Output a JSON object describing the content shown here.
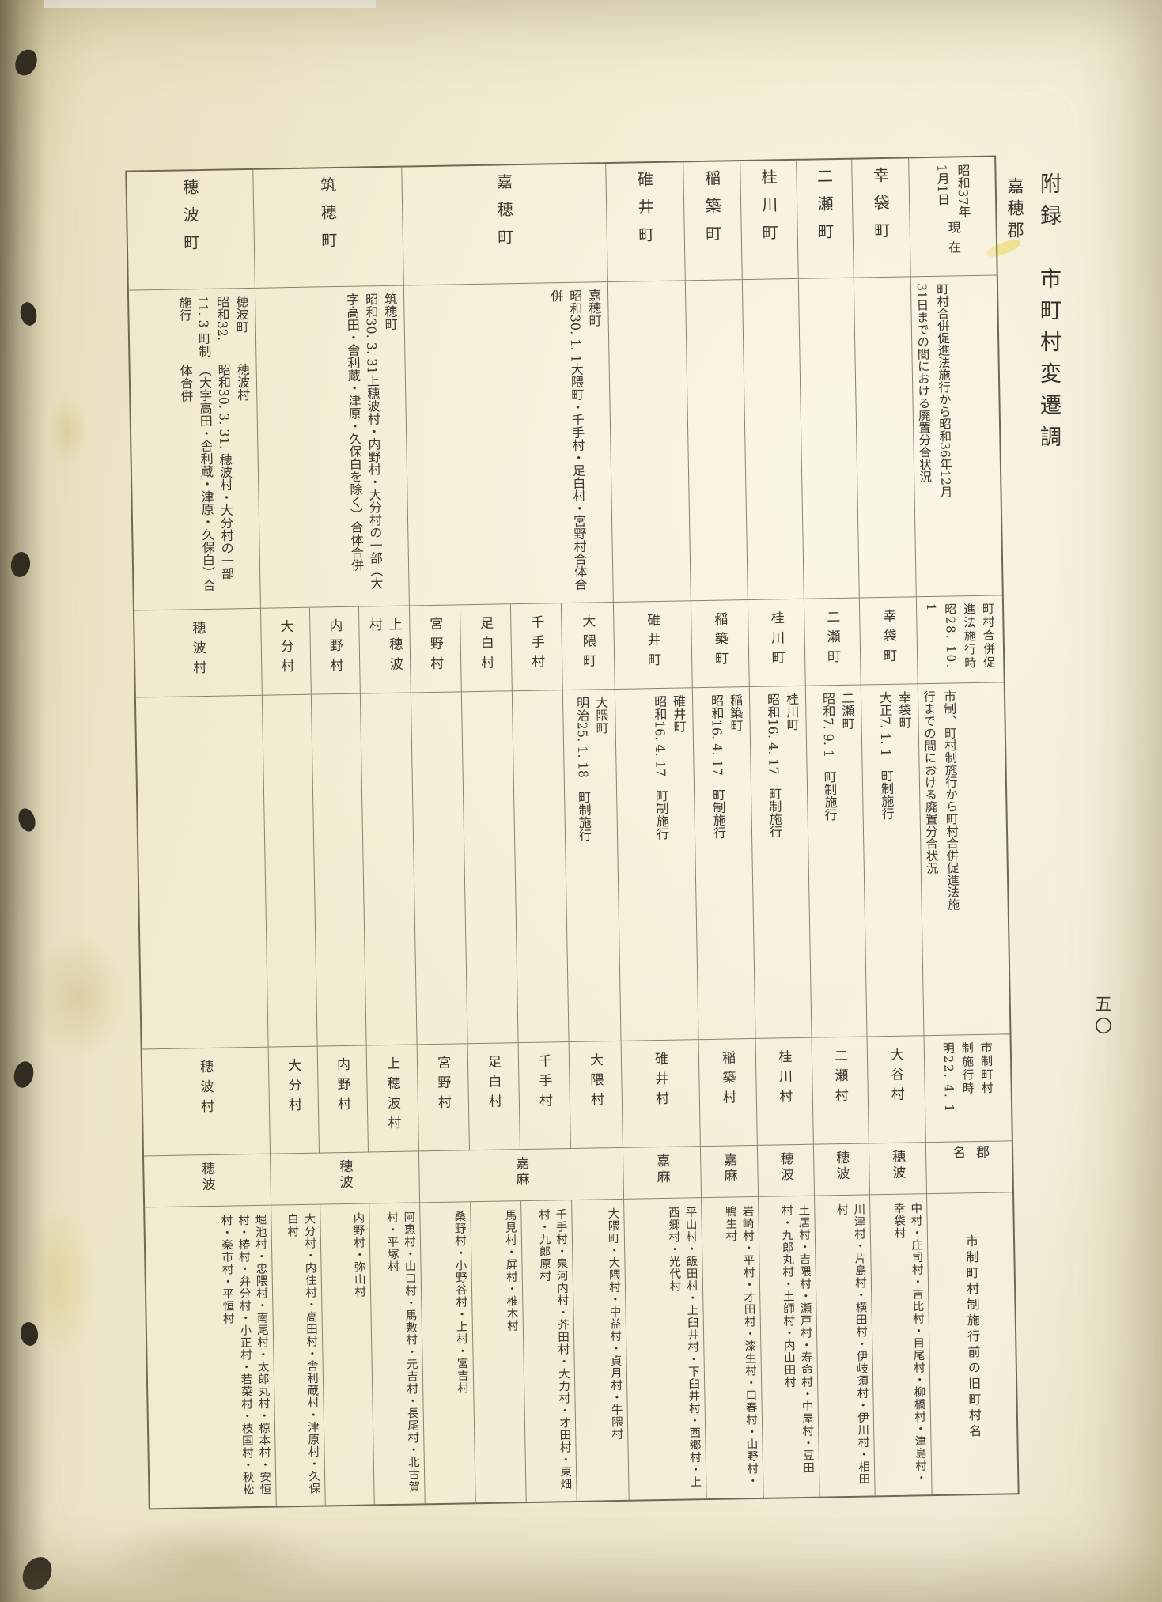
{
  "page": {
    "appendix_title": "附録　市町村変遷調",
    "district_label": "嘉穂郡",
    "page_number": "五〇"
  },
  "table": {
    "headers": {
      "h1": {
        "lines": "昭和37年\n1月1日",
        "sub": "現在"
      },
      "h2": "町村合併促進法施行から昭和36年12月\n31日までの間における廃置分合状況",
      "h3": "町村合併促\n進法施行時\n昭28. 10. 1",
      "h4": "市制、町村制施行から町村合併促進法施\n行までの間における廃置分合状況",
      "h5": "市制町村\n制施行時\n明22. 4. 1",
      "h6": "郡\n名",
      "h7": "市制町村制施行前の旧町村名"
    },
    "strips": [
      {
        "name_current": "幸袋町",
        "district": "穂波",
        "merger_1953_1961": [],
        "columns": [
          {
            "name_1953": "幸袋町",
            "merger_1889_1953": {
              "head": "幸袋町",
              "body": "大正7. 1. 1　町制施行"
            },
            "name_1889": "大谷村",
            "old_villages": "中村・庄司村・吉比村・目尾村・柳橋村・津島村・幸袋村"
          }
        ]
      },
      {
        "name_current": "二瀬町",
        "district": "穂波",
        "merger_1953_1961": [],
        "columns": [
          {
            "name_1953": "二瀬町",
            "merger_1889_1953": {
              "head": "二瀬町",
              "body": "昭和7. 9. 1　町制施行"
            },
            "name_1889": "二瀬村",
            "old_villages": "川津村・片島村・横田村・伊岐須村・伊川村・相田村"
          }
        ]
      },
      {
        "name_current": "桂川町",
        "district": "穂波",
        "merger_1953_1961": [],
        "columns": [
          {
            "name_1953": "桂川町",
            "merger_1889_1953": {
              "head": "桂川町",
              "body": "昭和16. 4. 17　町制施行"
            },
            "name_1889": "桂川村",
            "old_villages": "土居村・吉隈村・瀬戸村・寿命村・中屋村・豆田村・九郎丸村・土師村・内山田村"
          }
        ]
      },
      {
        "name_current": "稲築町",
        "district": "嘉麻",
        "merger_1953_1961": [],
        "columns": [
          {
            "name_1953": "稲築町",
            "merger_1889_1953": {
              "head": "稲築町",
              "body": "昭和16. 4. 17　町制施行"
            },
            "name_1889": "稲築村",
            "old_villages": "岩崎村・平村・才田村・漆生村・口春村・山野村・鴨生村"
          }
        ]
      },
      {
        "name_current": "碓井町",
        "district": "嘉麻",
        "merger_1953_1961": [],
        "columns": [
          {
            "name_1953": "碓井町",
            "merger_1889_1953": {
              "head": "碓井町",
              "body": "昭和16. 4. 17　町制施行"
            },
            "name_1889": "碓井村",
            "old_villages": "平山村・飯田村・上臼井村・下臼井村・西郷村・上西郷村・光代村"
          }
        ]
      },
      {
        "name_current": "嘉穂町",
        "district": "嘉麻",
        "merger_1953_1961": [
          {
            "head": "嘉穂町",
            "body": "昭和30. 1. 1大隈町・千手村・足白村・宮野村合体合併"
          }
        ],
        "columns": [
          {
            "name_1953": "大隈町",
            "merger_1889_1953": {
              "head": "大隈町",
              "body": "明治25. 1. 18　町制施行"
            },
            "name_1889": "大隈村",
            "old_villages": "大隈町・大隈村・中益村・貞月村・牛隈村"
          },
          {
            "name_1953": "千手村",
            "merger_1889_1953": null,
            "name_1889": "千手村",
            "old_villages": "千手村・泉河内村・芥田村・大力村・才田村・東畑村・九郎原村"
          },
          {
            "name_1953": "足白村",
            "merger_1889_1953": null,
            "name_1889": "足白村",
            "old_villages": "馬見村・屏村・椎木村"
          },
          {
            "name_1953": "宮野村",
            "merger_1889_1953": null,
            "name_1889": "宮野村",
            "old_villages": "桑野村・小野谷村・上村・宮吉村"
          }
        ]
      },
      {
        "name_current": "筑穂町",
        "district": "穂波",
        "merger_1953_1961": [
          {
            "head": "筑穂町",
            "body": "昭和30. 3. 31上穂波村・内野村・大分村の一部（大字高田・舎利蔵・津原・久保白を除く）合体合併"
          }
        ],
        "columns": [
          {
            "name_1953": "上穂波村",
            "merger_1889_1953": null,
            "name_1889": "上穂波村",
            "old_villages": "阿恵村・山口村・馬敷村・元吉村・長尾村・北古賀村・平塚村"
          },
          {
            "name_1953": "内野村",
            "merger_1889_1953": null,
            "name_1889": "内野村",
            "old_villages": "内野村・弥山村"
          },
          {
            "name_1953": "大分村",
            "merger_1889_1953": null,
            "name_1889": "大分村",
            "old_villages": "大分村・内住村・高田村・舎利蔵村・津原村・久保白村"
          }
        ]
      },
      {
        "name_current": "穂波町",
        "district": "穂波",
        "merger_1953_1961": [
          {
            "head": "穂波町",
            "body": "昭和32. 11. 3\n町制施行"
          },
          {
            "head": "穂波村",
            "body": "昭和30. 3. 31. 穂波村・大分村の一部（大字高田・舎利蔵・津原・久保白）合体合併"
          }
        ],
        "columns": [
          {
            "name_1953": "穂波村",
            "merger_1889_1953": null,
            "name_1889": "穂波村",
            "old_villages": "堀池村・忠隈村・南尾村・太郎丸村・椋本村・安恒村・椿村・弁分村・小正村・若菜村・枝国村・秋松村・楽市村・平恒村"
          }
        ]
      }
    ]
  }
}
